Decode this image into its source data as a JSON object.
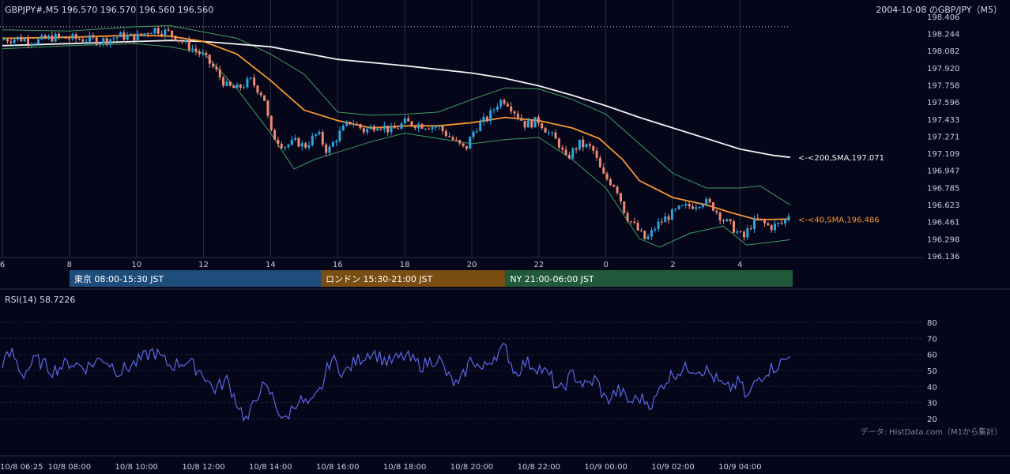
{
  "header": {
    "symbol_info": "GBPJPY#,M5 196.570 196.570 196.560 196.560",
    "title_right": "2004-10-08 のGBP/JPY（M5）"
  },
  "rsi": {
    "label": "RSI(14) 58.7226"
  },
  "credit": "データ: HistData.com（M1から集計）",
  "sessions": [
    {
      "label": "東京 08:00-15:30 JST",
      "color": "#1e4d7c"
    },
    {
      "label": "ロンドン 15:30-21:00 JST",
      "color": "#7a4d12"
    },
    {
      "label": "NY 21:00-06:00 JST",
      "color": "#21593a"
    }
  ],
  "colors": {
    "background": "#05061a",
    "bull": "#2ba6de",
    "bear": "#ef8a72",
    "sma40": "#f5962e",
    "sma200": "#f2f2f2",
    "bollinger": "#3e9e5f",
    "rsi_line": "#5b68e6"
  },
  "chart_data": [
    {
      "type": "candlestick",
      "title": "GBPJPY#,M5",
      "y_ticks": [
        "198.406",
        "198.244",
        "198.082",
        "197.920",
        "197.758",
        "197.596",
        "197.433",
        "197.271",
        "197.109",
        "196.947",
        "196.785",
        "196.623",
        "196.461",
        "196.298",
        "196.136"
      ],
      "ylim": [
        196.136,
        198.406
      ],
      "x_ticks": [
        "6",
        "8",
        "10",
        "12",
        "14",
        "16",
        "18",
        "20",
        "22",
        "0",
        "2",
        "4"
      ],
      "grid": true,
      "annotations": [
        {
          "text": "<-<200,SMA,197.071",
          "value": 197.071,
          "series": "SMA200"
        },
        {
          "text": "<-<40,SMA,196.486",
          "value": 196.486,
          "series": "SMA40"
        }
      ],
      "reference_line": 198.31,
      "price_path": [
        [
          6.0,
          198.19
        ],
        [
          6.5,
          198.2
        ],
        [
          7.0,
          198.17
        ],
        [
          7.5,
          198.21
        ],
        [
          8.0,
          198.2
        ],
        [
          8.5,
          198.19
        ],
        [
          9.0,
          198.18
        ],
        [
          9.5,
          198.22
        ],
        [
          10.0,
          198.21
        ],
        [
          10.5,
          198.29
        ],
        [
          11.0,
          198.25
        ],
        [
          11.5,
          198.14
        ],
        [
          12.0,
          198.03
        ],
        [
          12.3,
          197.92
        ],
        [
          12.7,
          197.74
        ],
        [
          13.0,
          197.72
        ],
        [
          13.4,
          197.8
        ],
        [
          13.8,
          197.65
        ],
        [
          14.0,
          197.3
        ],
        [
          14.4,
          197.18
        ],
        [
          14.8,
          197.22
        ],
        [
          15.0,
          197.17
        ],
        [
          15.4,
          197.3
        ],
        [
          15.7,
          197.12
        ],
        [
          16.0,
          197.28
        ],
        [
          16.4,
          197.42
        ],
        [
          16.8,
          197.32
        ],
        [
          17.2,
          197.39
        ],
        [
          17.6,
          197.32
        ],
        [
          18.0,
          197.4
        ],
        [
          18.5,
          197.38
        ],
        [
          19.0,
          197.36
        ],
        [
          19.5,
          197.22
        ],
        [
          19.8,
          197.14
        ],
        [
          20.1,
          197.35
        ],
        [
          20.5,
          197.45
        ],
        [
          20.8,
          197.6
        ],
        [
          21.0,
          197.62
        ],
        [
          21.3,
          197.5
        ],
        [
          21.6,
          197.38
        ],
        [
          22.0,
          197.42
        ],
        [
          22.3,
          197.3
        ],
        [
          22.6,
          197.2
        ],
        [
          22.8,
          197.05
        ],
        [
          23.2,
          197.2
        ],
        [
          23.6,
          197.15
        ],
        [
          23.9,
          196.9
        ],
        [
          24.3,
          196.8
        ],
        [
          24.6,
          196.52
        ],
        [
          24.9,
          196.4
        ],
        [
          25.2,
          196.28
        ],
        [
          25.5,
          196.42
        ],
        [
          25.8,
          196.5
        ],
        [
          26.2,
          196.58
        ],
        [
          26.6,
          196.62
        ],
        [
          26.9,
          196.66
        ],
        [
          27.2,
          196.6
        ],
        [
          27.5,
          196.48
        ],
        [
          27.8,
          196.4
        ],
        [
          28.1,
          196.3
        ],
        [
          28.3,
          196.42
        ],
        [
          28.5,
          196.48
        ],
        [
          28.9,
          196.41
        ],
        [
          29.3,
          196.45
        ],
        [
          29.5,
          196.56
        ]
      ],
      "sma40_path": [
        [
          6.0,
          198.2
        ],
        [
          8.0,
          198.21
        ],
        [
          10.0,
          198.23
        ],
        [
          11.0,
          198.22
        ],
        [
          12.0,
          198.17
        ],
        [
          13.0,
          198.05
        ],
        [
          14.0,
          197.8
        ],
        [
          15.0,
          197.52
        ],
        [
          16.0,
          197.42
        ],
        [
          17.0,
          197.35
        ],
        [
          18.0,
          197.37
        ],
        [
          19.0,
          197.37
        ],
        [
          20.0,
          197.4
        ],
        [
          21.0,
          197.45
        ],
        [
          22.0,
          197.42
        ],
        [
          23.0,
          197.35
        ],
        [
          23.8,
          197.25
        ],
        [
          24.5,
          197.05
        ],
        [
          25.0,
          196.85
        ],
        [
          26.0,
          196.69
        ],
        [
          27.0,
          196.62
        ],
        [
          27.7,
          196.55
        ],
        [
          28.5,
          196.48
        ],
        [
          29.5,
          196.486
        ]
      ],
      "sma200_path": [
        [
          6.0,
          198.13
        ],
        [
          8.0,
          198.15
        ],
        [
          10.0,
          198.17
        ],
        [
          11.0,
          198.18
        ],
        [
          12.0,
          198.17
        ],
        [
          14.0,
          198.12
        ],
        [
          16.0,
          198.0
        ],
        [
          18.0,
          197.94
        ],
        [
          20.0,
          197.87
        ],
        [
          21.0,
          197.82
        ],
        [
          22.0,
          197.75
        ],
        [
          23.0,
          197.66
        ],
        [
          24.0,
          197.56
        ],
        [
          25.0,
          197.45
        ],
        [
          26.0,
          197.35
        ],
        [
          27.0,
          197.25
        ],
        [
          28.0,
          197.15
        ],
        [
          29.0,
          197.09
        ],
        [
          29.5,
          197.071
        ]
      ],
      "bb_upper_path": [
        [
          6.0,
          198.28
        ],
        [
          8.0,
          198.27
        ],
        [
          10.0,
          198.31
        ],
        [
          11.0,
          198.32
        ],
        [
          12.0,
          198.26
        ],
        [
          13.0,
          198.2
        ],
        [
          14.0,
          198.05
        ],
        [
          15.0,
          197.86
        ],
        [
          16.0,
          197.5
        ],
        [
          17.0,
          197.47
        ],
        [
          18.0,
          197.48
        ],
        [
          19.0,
          197.5
        ],
        [
          20.0,
          197.62
        ],
        [
          21.0,
          197.73
        ],
        [
          22.0,
          197.72
        ],
        [
          23.0,
          197.62
        ],
        [
          24.0,
          197.48
        ],
        [
          25.0,
          197.2
        ],
        [
          26.0,
          196.92
        ],
        [
          27.0,
          196.78
        ],
        [
          28.0,
          196.78
        ],
        [
          28.6,
          196.8
        ],
        [
          29.5,
          196.62
        ]
      ],
      "bb_lower_path": [
        [
          6.0,
          198.1
        ],
        [
          8.0,
          198.13
        ],
        [
          10.0,
          198.15
        ],
        [
          11.0,
          198.12
        ],
        [
          12.0,
          198.06
        ],
        [
          13.0,
          197.72
        ],
        [
          14.0,
          197.3
        ],
        [
          14.7,
          196.96
        ],
        [
          15.3,
          197.05
        ],
        [
          16.0,
          197.12
        ],
        [
          17.0,
          197.22
        ],
        [
          18.0,
          197.3
        ],
        [
          19.0,
          197.25
        ],
        [
          20.0,
          197.2
        ],
        [
          21.0,
          197.24
        ],
        [
          22.0,
          197.26
        ],
        [
          23.0,
          197.05
        ],
        [
          24.0,
          196.78
        ],
        [
          25.0,
          196.3
        ],
        [
          25.6,
          196.22
        ],
        [
          26.5,
          196.35
        ],
        [
          27.5,
          196.42
        ],
        [
          28.2,
          196.24
        ],
        [
          29.0,
          196.27
        ],
        [
          29.5,
          196.29
        ]
      ]
    },
    {
      "type": "line",
      "title": "RSI(14) 58.7226",
      "y_ticks": [
        "80",
        "70",
        "60",
        "50",
        "40",
        "30",
        "20"
      ],
      "ylim": [
        20,
        80
      ],
      "x_ticks": [
        "10/8 06:25",
        "10/8 08:00",
        "10/8 10:00",
        "10/8 12:00",
        "10/8 14:00",
        "10/8 16:00",
        "10/8 18:00",
        "10/8 20:00",
        "10/8 22:00",
        "10/9 00:00",
        "10/9 02:00",
        "10/9 04:00"
      ],
      "rsi_path": [
        [
          6.0,
          55
        ],
        [
          6.3,
          61
        ],
        [
          6.6,
          47
        ],
        [
          7.0,
          57
        ],
        [
          7.5,
          50
        ],
        [
          8.0,
          55
        ],
        [
          8.5,
          52
        ],
        [
          9.0,
          58
        ],
        [
          9.5,
          49
        ],
        [
          10.0,
          55
        ],
        [
          10.5,
          62
        ],
        [
          11.0,
          53
        ],
        [
          11.5,
          56
        ],
        [
          12.0,
          48
        ],
        [
          12.3,
          38
        ],
        [
          12.7,
          44
        ],
        [
          13.0,
          30
        ],
        [
          13.3,
          18
        ],
        [
          13.7,
          40
        ],
        [
          14.0,
          36
        ],
        [
          14.4,
          18
        ],
        [
          14.8,
          32
        ],
        [
          15.2,
          28
        ],
        [
          15.5,
          38
        ],
        [
          15.8,
          58
        ],
        [
          16.2,
          48
        ],
        [
          16.5,
          55
        ],
        [
          17.0,
          62
        ],
        [
          17.5,
          55
        ],
        [
          18.0,
          59
        ],
        [
          18.5,
          53
        ],
        [
          19.0,
          58
        ],
        [
          19.3,
          46
        ],
        [
          19.6,
          40
        ],
        [
          20.0,
          58
        ],
        [
          20.3,
          50
        ],
        [
          20.7,
          60
        ],
        [
          21.0,
          64
        ],
        [
          21.3,
          48
        ],
        [
          21.6,
          55
        ],
        [
          22.0,
          52
        ],
        [
          22.4,
          45
        ],
        [
          22.6,
          36
        ],
        [
          23.0,
          48
        ],
        [
          23.4,
          40
        ],
        [
          23.7,
          45
        ],
        [
          24.0,
          31
        ],
        [
          24.4,
          38
        ],
        [
          24.7,
          30
        ],
        [
          25.0,
          33
        ],
        [
          25.4,
          29
        ],
        [
          25.7,
          42
        ],
        [
          26.0,
          48
        ],
        [
          26.5,
          52
        ],
        [
          27.0,
          50
        ],
        [
          27.3,
          44
        ],
        [
          27.6,
          38
        ],
        [
          28.0,
          43
        ],
        [
          28.2,
          32
        ],
        [
          28.5,
          44
        ],
        [
          28.8,
          50
        ],
        [
          29.1,
          53
        ],
        [
          29.5,
          58.7
        ]
      ]
    }
  ]
}
